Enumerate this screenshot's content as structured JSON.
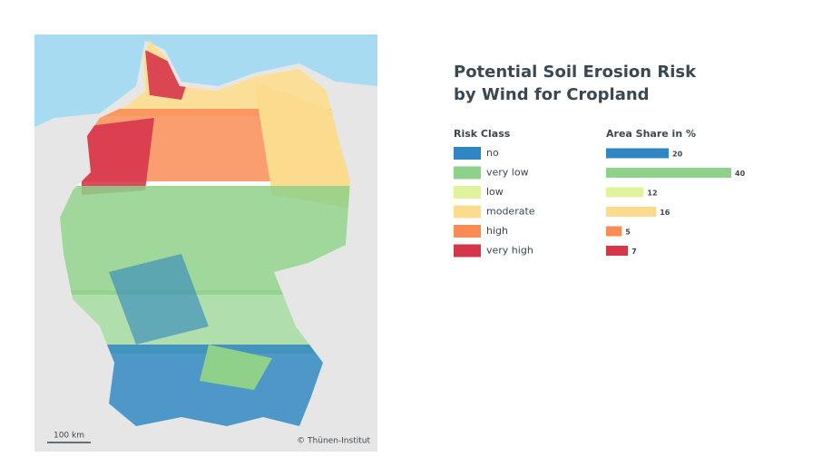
{
  "title_lines": [
    "Potential Soil Erosion Risk",
    "by Wind for Cropland"
  ],
  "legend_title": "Risk Class",
  "share_title": "Area Share in %",
  "classes": [
    {
      "name": "no",
      "color": "#2f86c0",
      "share": 20
    },
    {
      "name": "very low",
      "color": "#8fd08a",
      "share": 40
    },
    {
      "name": "low",
      "color": "#e0f29c",
      "share": 12
    },
    {
      "name": "moderate",
      "color": "#fbdc8e",
      "share": 16
    },
    {
      "name": "high",
      "color": "#f98c56",
      "share": 5
    },
    {
      "name": "very high",
      "color": "#d6364b",
      "share": 7
    }
  ],
  "scale_bar": "100 km",
  "credit": "© Thünen-Institut"
}
